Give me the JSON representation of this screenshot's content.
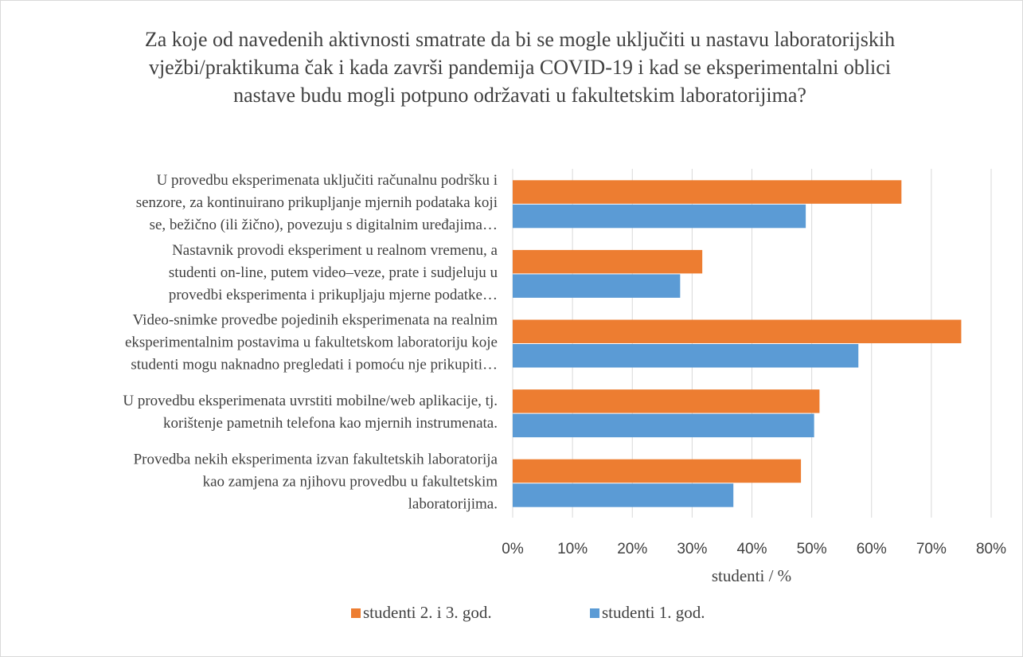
{
  "chart_data": {
    "type": "bar",
    "orientation": "horizontal",
    "title": "Za koje od navedenih aktivnosti smatrate da bi se mogle uključiti u nastavu laboratorijskih vježbi/praktikuma čak i kada završi pandemija COVID-19 i kad se eksperimentalni oblici nastave budu mogli potpuno održavati u fakultetskim laboratorijima?",
    "categories": [
      [
        "U provedbu eksperimenata uključiti računalnu podršku i",
        "senzore, za kontinuirano prikupljanje mjernih podataka koji",
        "se, bežično (ili žično), povezuju s digitalnim uređajima…"
      ],
      [
        "Nastavnik provodi eksperiment u realnom vremenu, a",
        "studenti on-line, putem video–veze, prate i sudjeluju u",
        "provedbi eksperimenta i prikupljaju mjerne podatke…"
      ],
      [
        "Video-snimke provedbe pojedinih eksperimenata na realnim",
        "eksperimentalnim postavima u fakultetskom laboratoriju koje",
        "studenti mogu naknadno pregledati i pomoću nje prikupiti…"
      ],
      [
        "U provedbu eksperimenata uvrstiti mobilne/web aplikacije, tj.",
        "korištenje pametnih telefona kao mjernih instrumenata."
      ],
      [
        "Provedba nekih eksperimenta izvan fakultetskih laboratorija",
        "kao zamjena za njihovu provedbu u fakultetskim",
        "laboratorijima."
      ]
    ],
    "series": [
      {
        "name": "studenti 2. i 3. god.",
        "color": "#ed7d31",
        "values": [
          65,
          31.7,
          75,
          51.3,
          48.2
        ]
      },
      {
        "name": "studenti 1. god.",
        "color": "#5b9bd5",
        "values": [
          49,
          28,
          57.8,
          50.4,
          36.9
        ]
      }
    ],
    "xlabel": "studenti / %",
    "xlim": [
      0,
      80
    ],
    "xticks": [
      {
        "value": 0,
        "label": "0%"
      },
      {
        "value": 10,
        "label": "10%"
      },
      {
        "value": 20,
        "label": "20%"
      },
      {
        "value": 30,
        "label": "30%"
      },
      {
        "value": 40,
        "label": "40%"
      },
      {
        "value": 50,
        "label": "50%"
      },
      {
        "value": 60,
        "label": "60%"
      },
      {
        "value": 70,
        "label": "70%"
      },
      {
        "value": 80,
        "label": "80%"
      }
    ],
    "grid": true,
    "legend": "bottom"
  }
}
